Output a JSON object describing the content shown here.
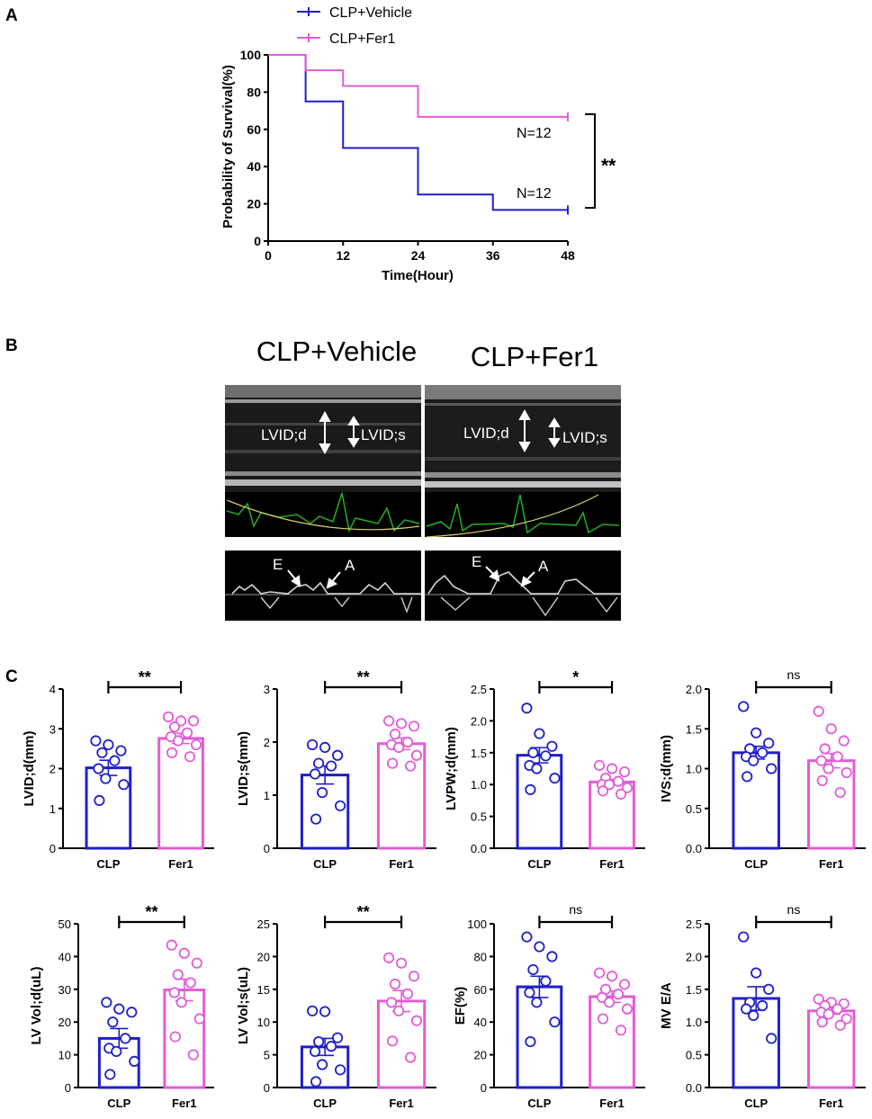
{
  "panel_labels": [
    "A",
    "B",
    "C"
  ],
  "colors": {
    "vehicle": "#1f1fc8",
    "fer1": "#e35cd6",
    "ecg": "#22b022",
    "trace": "#d9cf6b",
    "ink": "#000000"
  },
  "survival": {
    "legend": [
      "CLP+Vehicle",
      "CLP+Fer1"
    ],
    "ylabel": "Probability of Survival(%)",
    "xlabel": "Time(Hour)",
    "n_labels": [
      "N=12",
      "N=12"
    ],
    "significance": "**"
  },
  "echo": {
    "titles": [
      "CLP+Vehicle",
      "CLP+Fer1"
    ],
    "mmode_labels": [
      "LVID;d",
      "LVID;s"
    ],
    "doppler_labels": [
      "E",
      "A"
    ]
  },
  "bar_panels": {
    "categories": [
      "CLP",
      "Fer1"
    ]
  },
  "chart_data": [
    {
      "type": "line",
      "title": "",
      "xlabel": "Time(Hour)",
      "ylabel": "Probability of Survival(%)",
      "xlim": [
        0,
        48
      ],
      "ylim": [
        0,
        100
      ],
      "xticks": [
        0,
        12,
        24,
        36,
        48
      ],
      "yticks": [
        0,
        20,
        40,
        60,
        80,
        100
      ],
      "step": true,
      "series": [
        {
          "name": "CLP+Vehicle",
          "color": "#1f1fc8",
          "n_label": "N=12",
          "x": [
            0,
            6,
            12,
            24,
            36,
            48
          ],
          "y": [
            100,
            75,
            50,
            25,
            16.7,
            16.7
          ]
        },
        {
          "name": "CLP+Fer1",
          "color": "#e35cd6",
          "n_label": "N=12",
          "x": [
            0,
            6,
            12,
            24,
            48
          ],
          "y": [
            100,
            91.7,
            83.3,
            66.7,
            66.7
          ]
        }
      ],
      "annotation": "**"
    },
    {
      "type": "bar",
      "ylabel": "LVID;d(mm)",
      "categories": [
        "CLP",
        "Fer1"
      ],
      "ylim": [
        0,
        4
      ],
      "yticks": [
        "0",
        "1",
        "2",
        "3",
        "4"
      ],
      "means": [
        2.02,
        2.76
      ],
      "sem": [
        0.19,
        0.13
      ],
      "points": [
        [
          2.7,
          2.6,
          2.45,
          2.4,
          2.2,
          2.0,
          1.75,
          1.6,
          1.2
        ],
        [
          3.3,
          3.2,
          3.2,
          3.05,
          2.9,
          2.8,
          2.7,
          2.6,
          2.4,
          2.3
        ]
      ],
      "significance": "**"
    },
    {
      "type": "bar",
      "ylabel": "LVID;s(mm)",
      "categories": [
        "CLP",
        "Fer1"
      ],
      "ylim": [
        0,
        3
      ],
      "yticks": [
        "0",
        "1",
        "2",
        "3"
      ],
      "means": [
        1.38,
        1.97
      ],
      "sem": [
        0.17,
        0.11
      ],
      "points": [
        [
          1.95,
          1.9,
          1.75,
          1.6,
          1.55,
          1.4,
          1.05,
          0.8,
          0.55
        ],
        [
          2.4,
          2.35,
          2.3,
          2.15,
          2.0,
          1.95,
          1.9,
          1.75,
          1.6,
          1.55
        ]
      ],
      "significance": "**"
    },
    {
      "type": "bar",
      "ylabel": "LVPW;d(mm)",
      "categories": [
        "CLP",
        "Fer1"
      ],
      "ylim": [
        0,
        2.5
      ],
      "yticks": [
        "0.0",
        "0.5",
        "1.0",
        "1.5",
        "2.0",
        "2.5"
      ],
      "means": [
        1.46,
        1.04
      ],
      "sem": [
        0.12,
        0.04
      ],
      "points": [
        [
          2.2,
          1.8,
          1.6,
          1.5,
          1.45,
          1.3,
          1.25,
          1.1,
          0.92
        ],
        [
          1.3,
          1.25,
          1.2,
          1.1,
          1.05,
          1.0,
          1.0,
          0.95,
          0.9,
          0.85
        ]
      ],
      "significance": "*"
    },
    {
      "type": "bar",
      "ylabel": "IVS;d(mm)",
      "categories": [
        "CLP",
        "Fer1"
      ],
      "ylim": [
        0,
        2.0
      ],
      "yticks": [
        "0.0",
        "0.5",
        "1.0",
        "1.5",
        "2.0"
      ],
      "means": [
        1.2,
        1.1
      ],
      "sem": [
        0.08,
        0.09
      ],
      "points": [
        [
          1.78,
          1.45,
          1.32,
          1.25,
          1.2,
          1.15,
          1.1,
          1.0,
          0.9
        ],
        [
          1.72,
          1.5,
          1.35,
          1.25,
          1.15,
          1.1,
          1.0,
          0.95,
          0.85,
          0.7
        ]
      ],
      "significance": "ns"
    },
    {
      "type": "bar",
      "ylabel": "LV Vol;d(uL)",
      "categories": [
        "CLP",
        "Fer1"
      ],
      "ylim": [
        0,
        50
      ],
      "yticks": [
        "0",
        "10",
        "20",
        "30",
        "40",
        "50"
      ],
      "means": [
        15,
        29.8
      ],
      "sem": [
        3.0,
        3.3
      ],
      "points": [
        [
          26,
          24,
          23,
          20,
          15,
          12,
          11,
          8,
          4
        ],
        [
          43.5,
          41,
          38,
          34.5,
          32,
          29,
          26,
          21,
          15.5,
          10
        ]
      ],
      "significance": "**"
    },
    {
      "type": "bar",
      "ylabel": "LV Vol;s(uL)",
      "categories": [
        "CLP",
        "Fer1"
      ],
      "ylim": [
        0,
        25
      ],
      "yticks": [
        "0",
        "5",
        "10",
        "15",
        "20",
        "25"
      ],
      "means": [
        6.2,
        13.2
      ],
      "sem": [
        1.3,
        1.6
      ],
      "points": [
        [
          11.7,
          11.6,
          7.6,
          7.0,
          6.3,
          5.5,
          3.5,
          2.7,
          0.9
        ],
        [
          19.8,
          19.0,
          17.0,
          15.8,
          14.3,
          13.0,
          11.7,
          10.2,
          7.1,
          4.6
        ]
      ],
      "significance": "**"
    },
    {
      "type": "bar",
      "ylabel": "EF(%)",
      "categories": [
        "CLP",
        "Fer1"
      ],
      "ylim": [
        0,
        100
      ],
      "yticks": [
        "0",
        "20",
        "40",
        "60",
        "80",
        "100"
      ],
      "means": [
        61.5,
        55.5
      ],
      "sem": [
        6.5,
        3.5
      ],
      "points": [
        [
          92,
          86,
          80,
          72,
          65,
          58,
          52,
          40,
          28
        ],
        [
          70,
          68,
          63,
          60,
          57,
          55,
          52,
          48,
          42,
          35
        ]
      ],
      "significance": "ns"
    },
    {
      "type": "bar",
      "ylabel": "MV E/A",
      "categories": [
        "CLP",
        "Fer1"
      ],
      "ylim": [
        0,
        2.5
      ],
      "yticks": [
        "0.0",
        "0.5",
        "1.0",
        "1.5",
        "2.0",
        "2.5"
      ],
      "means": [
        1.36,
        1.17
      ],
      "sem": [
        0.18,
        0.05
      ],
      "points": [
        [
          2.3,
          1.75,
          1.5,
          1.3,
          1.25,
          1.2,
          1.1,
          0.75
        ],
        [
          1.35,
          1.3,
          1.28,
          1.25,
          1.2,
          1.15,
          1.12,
          1.05,
          1.0,
          0.95
        ]
      ],
      "significance": "ns"
    }
  ]
}
